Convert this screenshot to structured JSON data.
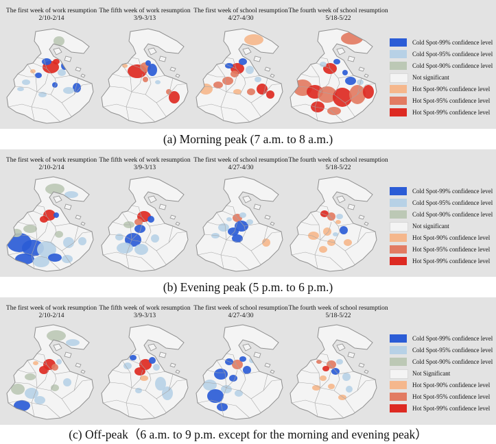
{
  "colors": {
    "cold99": "#2b5cd6",
    "cold95": "#b7d1e6",
    "cold90": "#bcc8b5",
    "notsig": "#f4f4f4",
    "hot90": "#f5b78c",
    "hot95": "#e27b62",
    "hot99": "#dd2a22",
    "panel": "#e3e3e3",
    "outline": "#8f8f8f"
  },
  "panels": [
    {
      "caption": "(a)  Morning peak (7 a.m. to 8 a.m.)",
      "maps": [
        {
          "title": "The first week of work resumption",
          "dates": "2/10-2/14",
          "pattern": "a0"
        },
        {
          "title": "The fifth week of work resumption",
          "dates": "3/9-3/13",
          "pattern": "a1"
        },
        {
          "title": "The first week of school resumption",
          "dates": "4/27-4/30",
          "pattern": "a2"
        },
        {
          "title": "The fourth week of school resumption",
          "dates": "5/18-5/22",
          "pattern": "a3"
        }
      ],
      "legend": [
        {
          "label": "Cold Spot-99% confidence level",
          "color": "cold99"
        },
        {
          "label": "Cold Spot-95% confidence level",
          "color": "cold95"
        },
        {
          "label": "Cold Spot-90% confidence level",
          "color": "cold90"
        },
        {
          "label": "Not significant",
          "color": "notsig"
        },
        {
          "label": "Hot Spot-90% confidence level",
          "color": "hot90"
        },
        {
          "label": "Hot Spot-95% confidence level",
          "color": "hot95"
        },
        {
          "label": "Hot Spot-99% confidence level",
          "color": "hot99"
        }
      ]
    },
    {
      "caption": "(b)  Evening peak (5 p.m. to 6 p.m.)",
      "maps": [
        {
          "title": "The first week of work resumption",
          "dates": "2/10-2/14",
          "pattern": "b0"
        },
        {
          "title": "The fifth week of work resumption",
          "dates": "3/9-3/13",
          "pattern": "b1"
        },
        {
          "title": "The first week of school resumption",
          "dates": "4/27-4/30",
          "pattern": "b2"
        },
        {
          "title": "The fourth week of school resumption",
          "dates": "5/18-5/22",
          "pattern": "b3"
        }
      ],
      "legend": [
        {
          "label": "Cold Spot-99% confidence level",
          "color": "cold99"
        },
        {
          "label": "Cold Spot-95% confidence level",
          "color": "cold95"
        },
        {
          "label": "Cold Spot-90% confidence level",
          "color": "cold90"
        },
        {
          "label": "Not significant",
          "color": "notsig"
        },
        {
          "label": "Hot Spot-90% confidence level",
          "color": "hot90"
        },
        {
          "label": "Hot Spot-95% confidence level",
          "color": "hot95"
        },
        {
          "label": "Hot Spot-99% confidence level",
          "color": "hot99"
        }
      ]
    },
    {
      "caption": "(c) Off-peak（6 a.m. to 9 p.m. except for the morning and evening peak）",
      "maps": [
        {
          "title": "The first week of work resumption",
          "dates": "2/10-2/14",
          "pattern": "c0"
        },
        {
          "title": "The fifth week of work resumption",
          "dates": "3/9-3/13",
          "pattern": "c1"
        },
        {
          "title": "The first week of school resumption",
          "dates": "4/27-4/30",
          "pattern": "c2"
        },
        {
          "title": "The fourth week of school resumption",
          "dates": "5/18-5/22",
          "pattern": "c3"
        }
      ],
      "legend": [
        {
          "label": "Cold Spot-99% confidence level",
          "color": "cold99"
        },
        {
          "label": "Cold Spot-95% confidence level",
          "color": "cold95"
        },
        {
          "label": "Cold Spot-90% confidence level",
          "color": "cold90"
        },
        {
          "label": "Not Significant",
          "color": "notsig"
        },
        {
          "label": "Hot Spot-90% confidence level",
          "color": "hot90"
        },
        {
          "label": "Hot Spot-95% confidence level",
          "color": "hot95"
        },
        {
          "label": "Hot Spot-99% confidence level",
          "color": "hot99"
        }
      ]
    }
  ]
}
